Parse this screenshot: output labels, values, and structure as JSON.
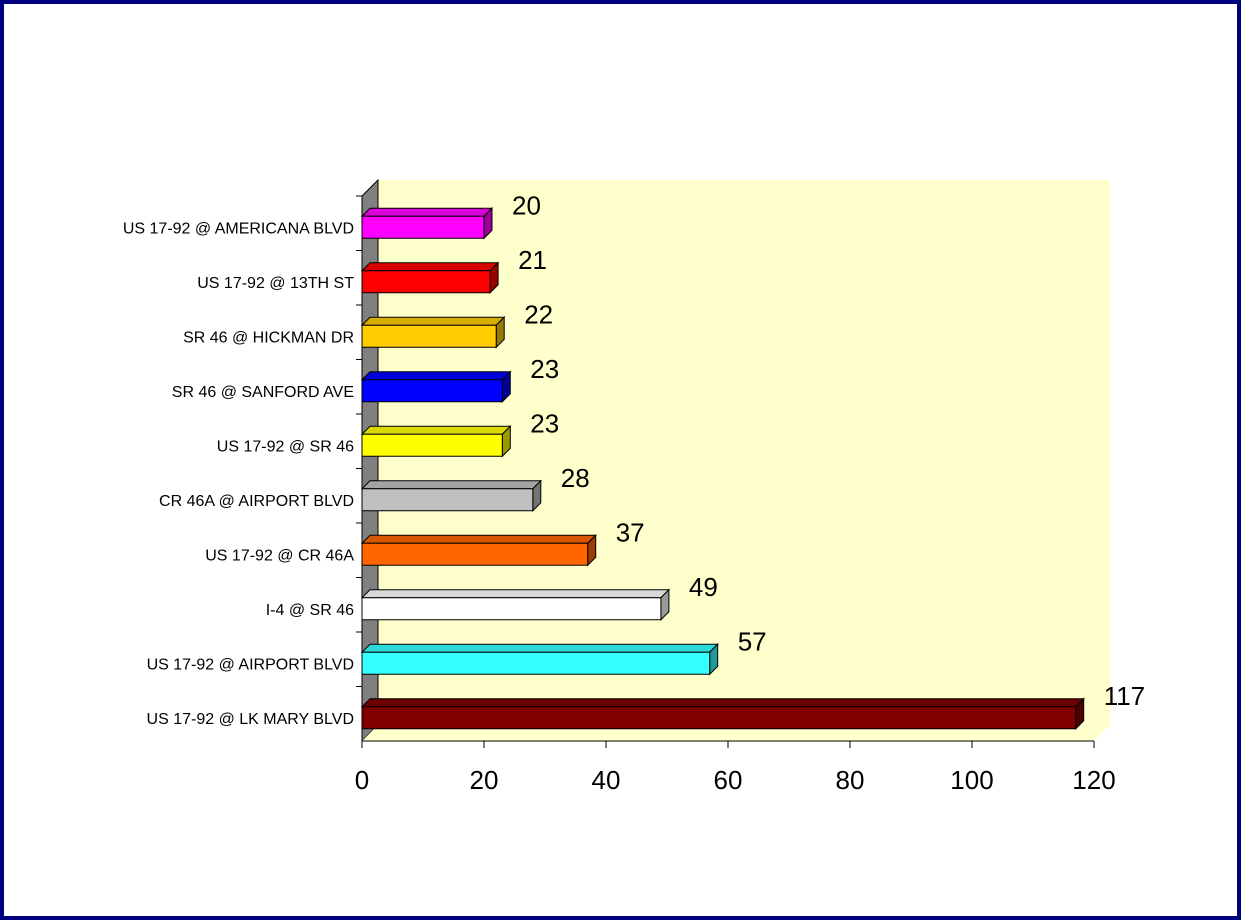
{
  "chart_data": {
    "type": "bar",
    "orientation": "horizontal",
    "style": "3d",
    "title": "",
    "xlabel": "",
    "ylabel": "",
    "xlim": [
      0,
      120
    ],
    "x_ticks": [
      0,
      20,
      40,
      60,
      80,
      100,
      120
    ],
    "grid": false,
    "legend": "none",
    "plot_background": "#ffffcc",
    "wall_color": "#808080",
    "categories": [
      "US 17-92 @ AMERICANA BLVD",
      "US 17-92 @ 13TH ST",
      "SR 46 @ HICKMAN DR",
      "SR 46 @ SANFORD AVE",
      "US 17-92 @ SR 46",
      "CR 46A @ AIRPORT BLVD",
      "US 17-92 @ CR 46A",
      "I-4 @ SR 46",
      "US 17-92 @ AIRPORT BLVD",
      "US 17-92 @ LK MARY BLVD"
    ],
    "values": [
      20,
      21,
      22,
      23,
      23,
      28,
      37,
      49,
      57,
      117
    ],
    "colors": [
      "#ff00ff",
      "#ff0000",
      "#ffcc00",
      "#0000ff",
      "#ffff00",
      "#c0c0c0",
      "#ff6600",
      "#ffffff",
      "#33ffff",
      "#800000"
    ]
  }
}
